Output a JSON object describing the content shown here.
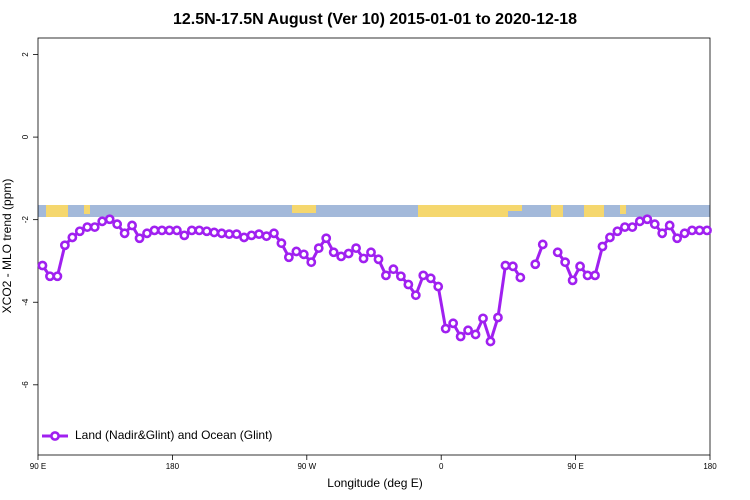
{
  "chart_data": {
    "type": "line",
    "title": "12.5N-17.5N August (Ver 10)   2015-01-01 to 2020-12-18",
    "xlabel": "Longitude (deg E)",
    "ylabel": "XCO2 - MLO trend (ppm)",
    "xlim": [
      90,
      540
    ],
    "xticks": [
      {
        "value": 90,
        "label": "90 E"
      },
      180,
      {
        "value": 270,
        "label": "90 W"
      },
      {
        "value": 360,
        "label": "0"
      },
      {
        "value": 450,
        "label": "90 E"
      },
      {
        "value": 540,
        "label": "180"
      }
    ],
    "ylim": [
      -7.7,
      2.4
    ],
    "yticks": [
      -6,
      -4,
      -2,
      0,
      2
    ],
    "legend": "bottom-left",
    "x": [
      93,
      98,
      103,
      108,
      113,
      118,
      123,
      128,
      133,
      138,
      143,
      148,
      153,
      158,
      163,
      168,
      173,
      178,
      183,
      188,
      193,
      198,
      203,
      208,
      213,
      218,
      223,
      228,
      233,
      238,
      243,
      248,
      253,
      258,
      263,
      268,
      273,
      278,
      283,
      288,
      293,
      298,
      303,
      308,
      313,
      318,
      323,
      328,
      333,
      338,
      343,
      348,
      353,
      358,
      363,
      368,
      373,
      378,
      383,
      388,
      393,
      398,
      403,
      408,
      413,
      418,
      423,
      428,
      433,
      438,
      443,
      448,
      453,
      458,
      463,
      468,
      473,
      478,
      483,
      488,
      493,
      498,
      503,
      508,
      513,
      518,
      523,
      528,
      533,
      538
    ],
    "series": [
      {
        "name": "Land (Nadir&Glint) and Ocean (Glint)",
        "color": "#a020f0",
        "values": [
          -3.11,
          -3.37,
          -3.37,
          -2.62,
          -2.43,
          -2.28,
          -2.18,
          -2.18,
          -2.04,
          -1.99,
          -2.11,
          -2.33,
          -2.14,
          -2.45,
          -2.33,
          -2.26,
          -2.26,
          -2.26,
          -2.26,
          -2.38,
          -2.26,
          -2.26,
          -2.28,
          -2.31,
          -2.33,
          -2.35,
          -2.35,
          -2.43,
          -2.38,
          -2.35,
          -2.4,
          -2.33,
          -2.57,
          -2.91,
          -2.77,
          -2.84,
          -3.03,
          -2.69,
          -2.45,
          -2.79,
          -2.89,
          -2.82,
          -2.69,
          -2.94,
          -2.79,
          -2.96,
          -3.35,
          -3.2,
          -3.37,
          -3.57,
          -3.83,
          -3.35,
          -3.42,
          -3.62,
          -4.64,
          -4.51,
          -4.83,
          -4.68,
          -4.78,
          -4.39,
          -4.95,
          -4.37,
          -3.11,
          -3.13,
          -3.4,
          null,
          -3.08,
          -2.6,
          null,
          -2.79,
          -3.03,
          -3.47,
          -3.13,
          -3.35,
          -3.35,
          -2.65,
          -2.43,
          -2.28,
          -2.18,
          -2.18,
          -2.04,
          -1.99,
          -2.11,
          -2.33,
          -2.14,
          -2.45,
          -2.33,
          -2.26,
          -2.26,
          -2.26
        ]
      }
    ]
  }
}
